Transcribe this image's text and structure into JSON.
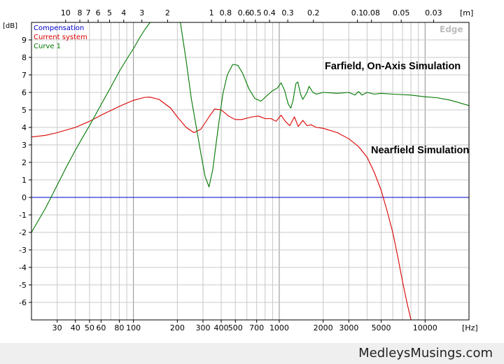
{
  "chart_data": {
    "type": "line",
    "x_scale": "log",
    "x_unit": "[Hz]",
    "x_top_unit": "[m]",
    "y_unit": "[dB]",
    "xlim": [
      20,
      20000
    ],
    "ylim": [
      -7,
      10
    ],
    "grid": true,
    "x_ticks": [
      {
        "value": 30,
        "label": "30"
      },
      {
        "value": 40,
        "label": "40"
      },
      {
        "value": 50,
        "label": "50"
      },
      {
        "value": 60,
        "label": "60"
      },
      {
        "value": 80,
        "label": "80"
      },
      {
        "value": 100,
        "label": "100"
      },
      {
        "value": 200,
        "label": "200"
      },
      {
        "value": 300,
        "label": "300"
      },
      {
        "value": 400,
        "label": "400"
      },
      {
        "value": 500,
        "label": "500"
      },
      {
        "value": 700,
        "label": "700"
      },
      {
        "value": 1000,
        "label": "1000"
      },
      {
        "value": 2000,
        "label": "2000"
      },
      {
        "value": 3000,
        "label": "3000"
      },
      {
        "value": 5000,
        "label": "5000"
      },
      {
        "value": 10000,
        "label": "10000"
      }
    ],
    "x_top_ticks": [
      {
        "value": 34.3,
        "label": "10"
      },
      {
        "value": 42.9,
        "label": "8"
      },
      {
        "value": 49,
        "label": "7"
      },
      {
        "value": 57.2,
        "label": "6"
      },
      {
        "value": 68.6,
        "label": "5"
      },
      {
        "value": 85.8,
        "label": "4"
      },
      {
        "value": 114.3,
        "label": "3"
      },
      {
        "value": 171.5,
        "label": "2"
      },
      {
        "value": 343,
        "label": "1"
      },
      {
        "value": 428.8,
        "label": "0.8"
      },
      {
        "value": 571.7,
        "label": "0.6"
      },
      {
        "value": 686,
        "label": "0.5"
      },
      {
        "value": 857.5,
        "label": "0.4"
      },
      {
        "value": 1143.3,
        "label": "0.3"
      },
      {
        "value": 1715,
        "label": "0.2"
      },
      {
        "value": 3430,
        "label": "0.1"
      },
      {
        "value": 4287.5,
        "label": "0.08"
      },
      {
        "value": 6860,
        "label": "0.05"
      },
      {
        "value": 11433,
        "label": "0.03"
      }
    ],
    "y_ticks": [
      9,
      8,
      7,
      6,
      5,
      4,
      3,
      2,
      1,
      0,
      -1,
      -2,
      -3,
      -4,
      -5,
      -6
    ],
    "series": [
      {
        "name": "Compensation",
        "color": "#0000c8",
        "points": [
          [
            20,
            0
          ],
          [
            20000,
            0
          ]
        ]
      },
      {
        "name": "Current system",
        "color": "#dc0000",
        "points": [
          [
            20,
            3.45
          ],
          [
            25,
            3.55
          ],
          [
            30,
            3.7
          ],
          [
            40,
            4.0
          ],
          [
            50,
            4.35
          ],
          [
            60,
            4.7
          ],
          [
            80,
            5.2
          ],
          [
            100,
            5.55
          ],
          [
            120,
            5.72
          ],
          [
            130,
            5.73
          ],
          [
            150,
            5.6
          ],
          [
            180,
            5.1
          ],
          [
            200,
            4.6
          ],
          [
            230,
            4.0
          ],
          [
            260,
            3.7
          ],
          [
            290,
            3.9
          ],
          [
            330,
            4.6
          ],
          [
            360,
            5.05
          ],
          [
            400,
            5.0
          ],
          [
            450,
            4.65
          ],
          [
            500,
            4.45
          ],
          [
            550,
            4.45
          ],
          [
            650,
            4.6
          ],
          [
            720,
            4.65
          ],
          [
            800,
            4.5
          ],
          [
            880,
            4.5
          ],
          [
            950,
            4.35
          ],
          [
            1030,
            4.7
          ],
          [
            1100,
            4.35
          ],
          [
            1180,
            4.1
          ],
          [
            1270,
            4.6
          ],
          [
            1350,
            4.05
          ],
          [
            1450,
            4.4
          ],
          [
            1550,
            4.1
          ],
          [
            1650,
            4.15
          ],
          [
            1800,
            4.0
          ],
          [
            2000,
            3.95
          ],
          [
            2500,
            3.7
          ],
          [
            3000,
            3.35
          ],
          [
            3500,
            2.9
          ],
          [
            4000,
            2.3
          ],
          [
            4500,
            1.4
          ],
          [
            5000,
            0.4
          ],
          [
            5500,
            -0.8
          ],
          [
            6000,
            -2.0
          ],
          [
            6500,
            -3.4
          ],
          [
            7000,
            -4.8
          ],
          [
            7500,
            -6.0
          ],
          [
            8000,
            -7.0
          ]
        ]
      },
      {
        "name": "Curve 1",
        "color": "#007800",
        "points": [
          [
            20,
            -2.0
          ],
          [
            25,
            -0.6
          ],
          [
            30,
            0.7
          ],
          [
            35,
            1.8
          ],
          [
            40,
            2.7
          ],
          [
            45,
            3.45
          ],
          [
            50,
            4.1
          ],
          [
            60,
            5.3
          ],
          [
            70,
            6.3
          ],
          [
            80,
            7.2
          ],
          [
            90,
            7.9
          ],
          [
            100,
            8.5
          ],
          [
            110,
            9.1
          ],
          [
            120,
            9.6
          ],
          [
            130,
            10.0
          ],
          [
            200,
            10.5
          ],
          [
            210,
            10.0
          ],
          [
            230,
            7.8
          ],
          [
            250,
            5.6
          ],
          [
            270,
            4.0
          ],
          [
            290,
            2.5
          ],
          [
            310,
            1.2
          ],
          [
            330,
            0.6
          ],
          [
            350,
            1.6
          ],
          [
            380,
            3.9
          ],
          [
            410,
            5.9
          ],
          [
            440,
            7.0
          ],
          [
            480,
            7.6
          ],
          [
            520,
            7.55
          ],
          [
            560,
            7.1
          ],
          [
            620,
            6.2
          ],
          [
            680,
            5.65
          ],
          [
            750,
            5.5
          ],
          [
            820,
            5.8
          ],
          [
            900,
            6.1
          ],
          [
            970,
            6.25
          ],
          [
            1030,
            6.55
          ],
          [
            1090,
            6.1
          ],
          [
            1150,
            5.35
          ],
          [
            1200,
            5.1
          ],
          [
            1240,
            5.5
          ],
          [
            1300,
            6.5
          ],
          [
            1340,
            6.6
          ],
          [
            1400,
            5.9
          ],
          [
            1450,
            5.6
          ],
          [
            1550,
            6.0
          ],
          [
            1600,
            6.35
          ],
          [
            1700,
            6.0
          ],
          [
            1800,
            5.9
          ],
          [
            2000,
            6.0
          ],
          [
            2500,
            5.95
          ],
          [
            3000,
            6.0
          ],
          [
            3300,
            5.85
          ],
          [
            3500,
            6.05
          ],
          [
            3700,
            5.85
          ],
          [
            4000,
            6.0
          ],
          [
            4500,
            5.9
          ],
          [
            5000,
            5.95
          ],
          [
            6000,
            5.9
          ],
          [
            8000,
            5.85
          ],
          [
            10000,
            5.75
          ],
          [
            12000,
            5.7
          ],
          [
            15000,
            5.55
          ],
          [
            20000,
            5.25
          ]
        ]
      }
    ],
    "annotations": [
      "Farfield, On-Axis Simulation",
      "Nearfield Simulation"
    ],
    "watermark": "Edge"
  },
  "footer": {
    "site": "MedleysMusings.com"
  }
}
